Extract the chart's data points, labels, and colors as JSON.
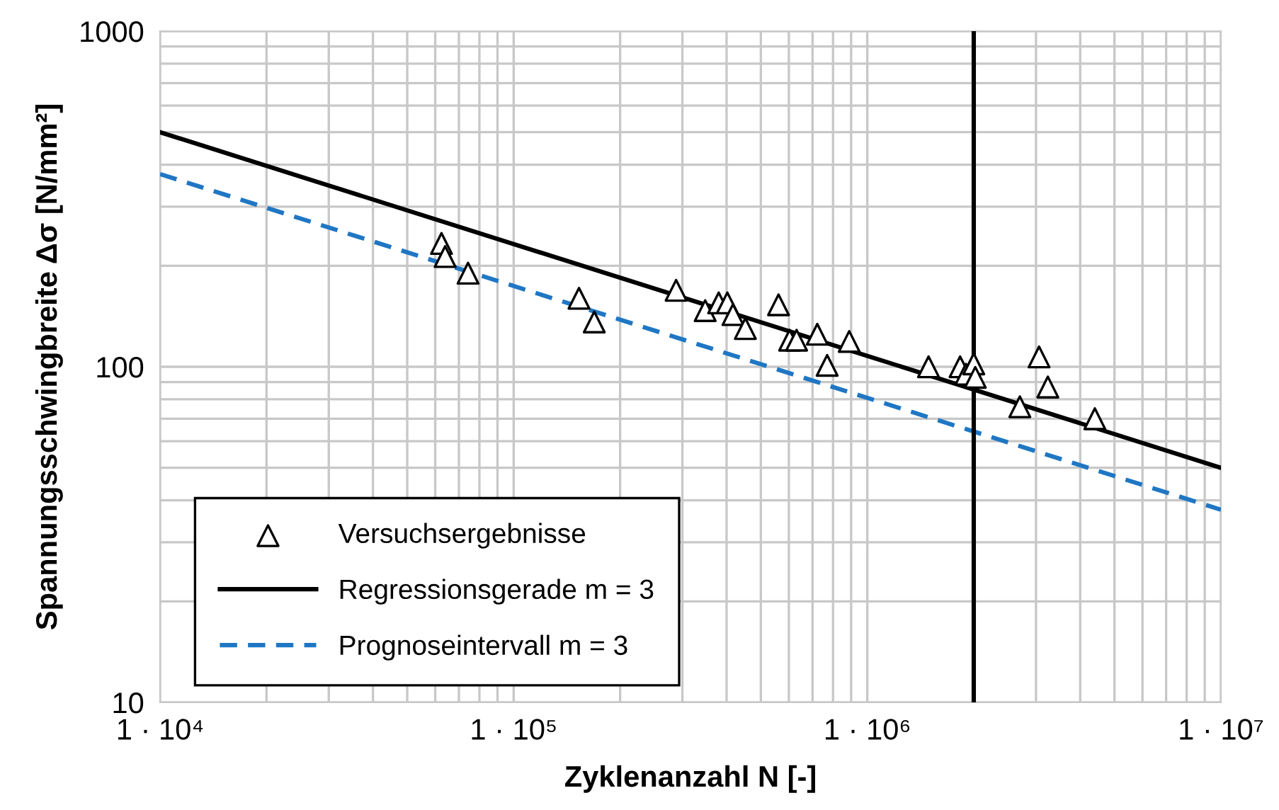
{
  "chart_data": {
    "type": "scatter",
    "xlabel": "Zyklenanzahl N [-]",
    "ylabel": "Spannungsschwingbreite Δσ [N/mm²]",
    "log": "xy",
    "grid": true,
    "legend": "bottom left",
    "xlim": [
      10000,
      10000000
    ],
    "xticks": [
      {
        "value": 10000,
        "label": "1 · 10⁴"
      },
      {
        "value": 100000,
        "label": "1 · 10⁵"
      },
      {
        "value": 1000000,
        "label": "1 · 10⁶"
      },
      {
        "value": 10000000,
        "label": "1 · 10⁷"
      }
    ],
    "ylim": [
      10,
      1000
    ],
    "yticks": [
      10,
      100,
      1000
    ],
    "series": [
      {
        "name": "Versuchsergebnisse",
        "marker": "triangle",
        "color": "#000000",
        "x": [
          62500,
          64000,
          74300,
          153000,
          169000,
          288000,
          348000,
          380000,
          402000,
          417000,
          452000,
          561000,
          603000,
          631000,
          722000,
          770000,
          889000,
          1490000,
          1830000,
          1900000,
          2000000,
          2020000,
          2700000,
          3060000,
          3240000,
          4400000
        ],
        "values": [
          233,
          213,
          190,
          160,
          136,
          169,
          147,
          155,
          155,
          143,
          130,
          153,
          120,
          120,
          125,
          101,
          119,
          100,
          100,
          95,
          102,
          93,
          76,
          107,
          87,
          70
        ]
      },
      {
        "name": "Regressionsgerade m = 3",
        "type": "line",
        "line_style": "solid",
        "color": "#000000",
        "x": [
          10000,
          10000000
        ],
        "values": [
          500,
          50
        ]
      },
      {
        "name": "Prognoseintervall m = 3",
        "type": "line",
        "line_style": "dashed",
        "color": "#1f77c4",
        "x": [
          10000,
          10000000
        ],
        "values": [
          375,
          37.5
        ]
      }
    ],
    "ref_lines": [
      {
        "axis": "x",
        "value": 2000000,
        "color": "#000000",
        "line_style": "solid"
      }
    ]
  }
}
